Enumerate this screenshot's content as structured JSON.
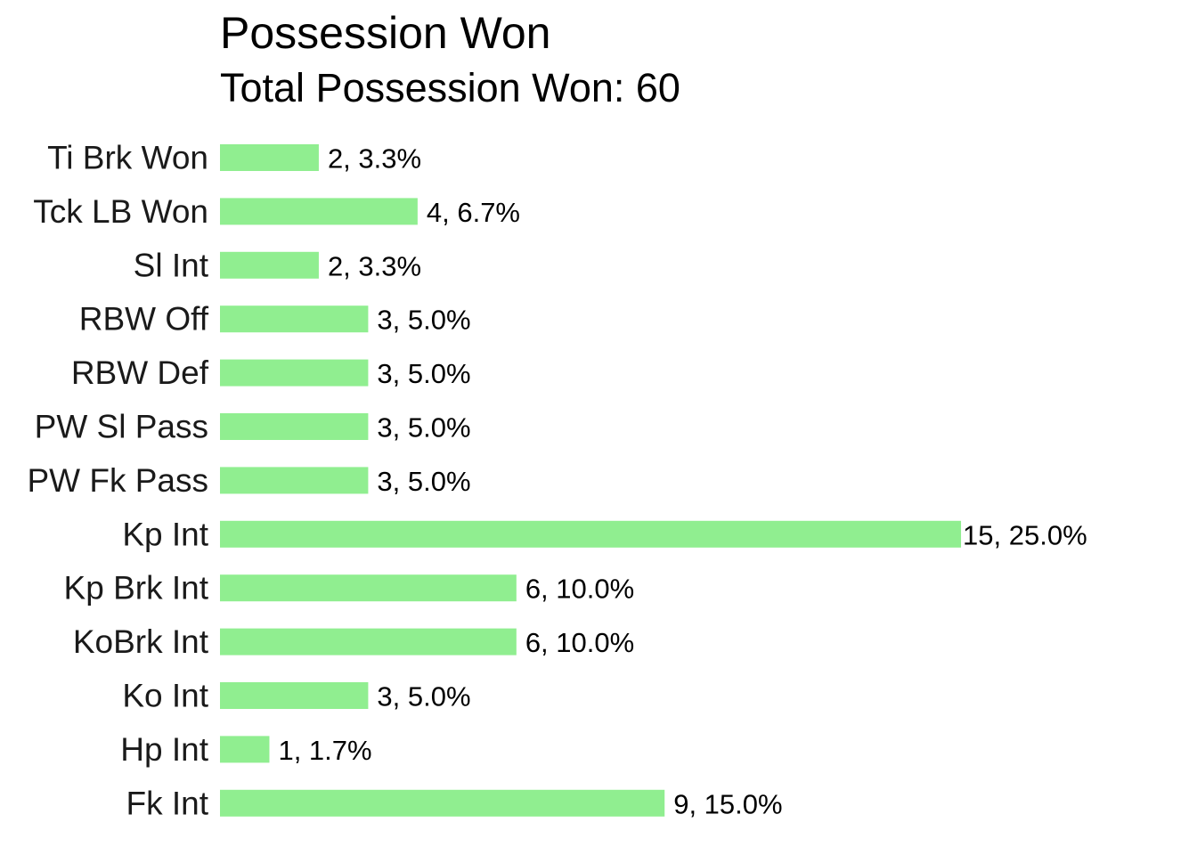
{
  "chart_data": {
    "type": "bar",
    "orientation": "horizontal",
    "title": "Possession Won",
    "subtitle": "Total Possession Won: 60",
    "xlabel": "",
    "ylabel": "",
    "grid": false,
    "bar_color": "#90EE90",
    "categories": [
      "Ti Brk Won",
      "Tck LB Won",
      "Sl Int",
      "RBW Off",
      "RBW Def",
      "PW Sl Pass",
      "PW Fk Pass",
      "Kp Int",
      "Kp Brk Int",
      "KoBrk Int",
      "Ko Int",
      "Hp Int",
      "Fk Int"
    ],
    "values": [
      2,
      4,
      2,
      3,
      3,
      3,
      3,
      15,
      6,
      6,
      3,
      1,
      9
    ],
    "data_labels": [
      "2, 3.3%",
      "4, 6.7%",
      "2, 3.3%",
      "3, 5.0%",
      "3, 5.0%",
      "3, 5.0%",
      "3, 5.0%",
      "15, 25.0%",
      "6, 10.0%",
      "6, 10.0%",
      "3, 5.0%",
      "1, 1.7%",
      "9, 15.0%"
    ],
    "xlim": [
      0,
      15
    ]
  }
}
